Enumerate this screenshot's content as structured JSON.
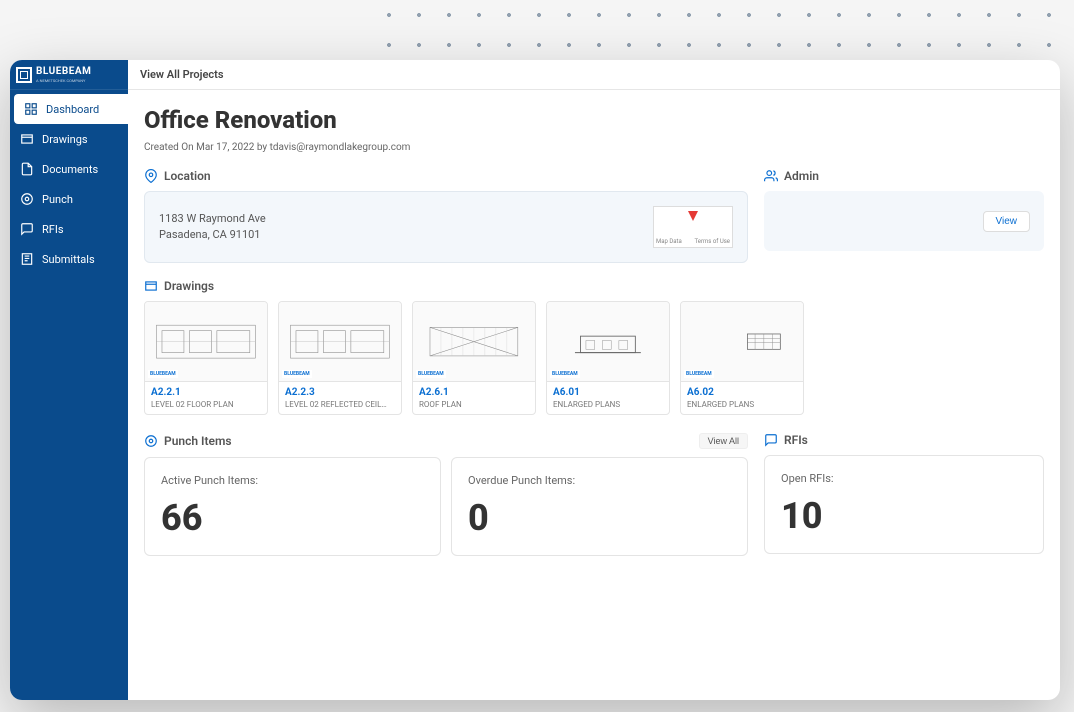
{
  "brand": {
    "name": "BLUEBEAM",
    "tagline": "A NEMETSCHEK COMPANY"
  },
  "topbar": {
    "view_all_projects": "View All Projects"
  },
  "sidebar": {
    "items": [
      {
        "label": "Dashboard",
        "icon": "dashboard-icon",
        "active": true
      },
      {
        "label": "Drawings",
        "icon": "drawings-icon",
        "active": false
      },
      {
        "label": "Documents",
        "icon": "documents-icon",
        "active": false
      },
      {
        "label": "Punch",
        "icon": "punch-icon",
        "active": false
      },
      {
        "label": "RFIs",
        "icon": "rfi-icon",
        "active": false
      },
      {
        "label": "Submittals",
        "icon": "submittals-icon",
        "active": false
      }
    ]
  },
  "page": {
    "title": "Office Renovation",
    "meta": "Created On Mar 17, 2022 by tdavis@raymondlakegroup.com"
  },
  "location": {
    "section_label": "Location",
    "address_line1": "1183 W Raymond Ave",
    "address_line2": "Pasadena, CA 91101",
    "map": {
      "label_left": "Map Data",
      "label_right": "Terms of Use"
    }
  },
  "admin": {
    "section_label": "Admin",
    "view_button": "View"
  },
  "drawings": {
    "section_label": "Drawings",
    "thumb_brand": "BLUEBEAM",
    "items": [
      {
        "id": "A2.2.1",
        "name": "LEVEL 02 FLOOR PLAN",
        "pattern": "floorplan"
      },
      {
        "id": "A2.2.3",
        "name": "LEVEL 02 REFLECTED CEIL…",
        "pattern": "floorplan"
      },
      {
        "id": "A2.6.1",
        "name": "ROOF PLAN",
        "pattern": "roof"
      },
      {
        "id": "A6.01",
        "name": "ENLARGED PLANS",
        "pattern": "elevation"
      },
      {
        "id": "A6.02",
        "name": "ENLARGED PLANS",
        "pattern": "detail"
      }
    ]
  },
  "punch": {
    "section_label": "Punch Items",
    "view_all": "View All",
    "active": {
      "label": "Active Punch Items:",
      "value": "66"
    },
    "overdue": {
      "label": "Overdue Punch Items:",
      "value": "0"
    }
  },
  "rfis": {
    "section_label": "RFIs",
    "open": {
      "label": "Open RFIs:",
      "value": "10"
    }
  },
  "colors": {
    "sidebar_bg": "#0a4b8c",
    "accent": "#0a6ed1",
    "text_primary": "#333333",
    "text_secondary": "#666666",
    "card_bg": "#f3f7fb",
    "border": "#e4e4e4",
    "marker": "#e53935"
  }
}
